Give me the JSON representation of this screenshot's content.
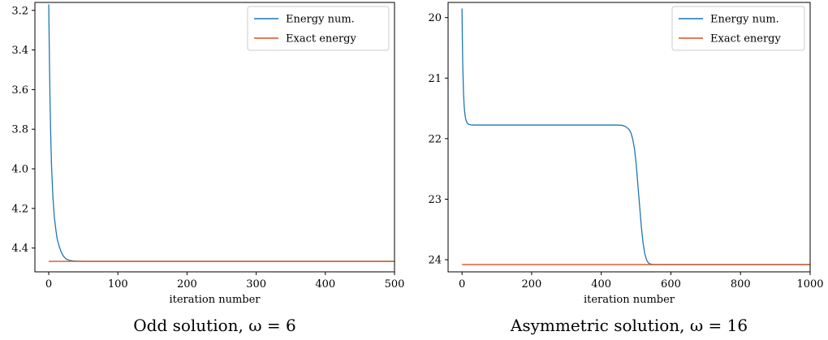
{
  "chart_data": [
    {
      "type": "line",
      "caption": "Odd solution, ω = 6",
      "xlabel": "iteration number",
      "ylabel": "",
      "xlim": [
        -20,
        500
      ],
      "ylim": [
        4.52,
        3.16
      ],
      "y_inverted": true,
      "xticks": [
        0,
        100,
        200,
        300,
        400,
        500
      ],
      "yticks": [
        3.2,
        3.4,
        3.6,
        3.8,
        4.0,
        4.2,
        4.4
      ],
      "grid": false,
      "legend_position": "top-right",
      "series": [
        {
          "name": "Energy num.",
          "color": "#1f77b4",
          "x": [
            0,
            1,
            2,
            3,
            4,
            6,
            8,
            10,
            12,
            15,
            18,
            21,
            25,
            30,
            35,
            40,
            50,
            60,
            80,
            100,
            150,
            200,
            300,
            400,
            500
          ],
          "y": [
            3.17,
            3.45,
            3.68,
            3.85,
            3.98,
            4.14,
            4.24,
            4.3,
            4.35,
            4.39,
            4.42,
            4.44,
            4.455,
            4.462,
            4.465,
            4.466,
            4.467,
            4.467,
            4.467,
            4.467,
            4.467,
            4.467,
            4.467,
            4.467,
            4.467
          ]
        },
        {
          "name": "Exact energy",
          "color": "#d9541e",
          "x": [
            0,
            500
          ],
          "y": [
            4.467,
            4.467
          ]
        }
      ]
    },
    {
      "type": "line",
      "caption": "Asymmetric solution, ω = 16",
      "xlabel": "iteration number",
      "ylabel": "",
      "xlim": [
        -40,
        1000
      ],
      "ylim": [
        24.2,
        19.75
      ],
      "y_inverted": true,
      "xticks": [
        0,
        200,
        400,
        600,
        800,
        1000
      ],
      "yticks": [
        20,
        21,
        22,
        23,
        24
      ],
      "grid": false,
      "legend_position": "top-right",
      "series": [
        {
          "name": "Energy num.",
          "color": "#1f77b4",
          "x": [
            0,
            1,
            2,
            4,
            6,
            8,
            10,
            13,
            16,
            20,
            25,
            30,
            40,
            60,
            100,
            200,
            300,
            400,
            440,
            460,
            470,
            480,
            485,
            490,
            495,
            500,
            505,
            510,
            515,
            520,
            525,
            530,
            535,
            540,
            550,
            560,
            600,
            700,
            800,
            900,
            1000
          ],
          "y": [
            19.85,
            20.35,
            20.75,
            21.2,
            21.45,
            21.58,
            21.66,
            21.72,
            21.75,
            21.765,
            21.77,
            21.775,
            21.775,
            21.775,
            21.775,
            21.775,
            21.775,
            21.775,
            21.775,
            21.78,
            21.8,
            21.85,
            21.9,
            22.0,
            22.15,
            22.4,
            22.75,
            23.1,
            23.45,
            23.72,
            23.9,
            24.0,
            24.05,
            24.07,
            24.08,
            24.08,
            24.08,
            24.08,
            24.08,
            24.08,
            24.08
          ]
        },
        {
          "name": "Exact energy",
          "color": "#d9541e",
          "x": [
            0,
            1000
          ],
          "y": [
            24.08,
            24.08
          ]
        }
      ]
    }
  ]
}
